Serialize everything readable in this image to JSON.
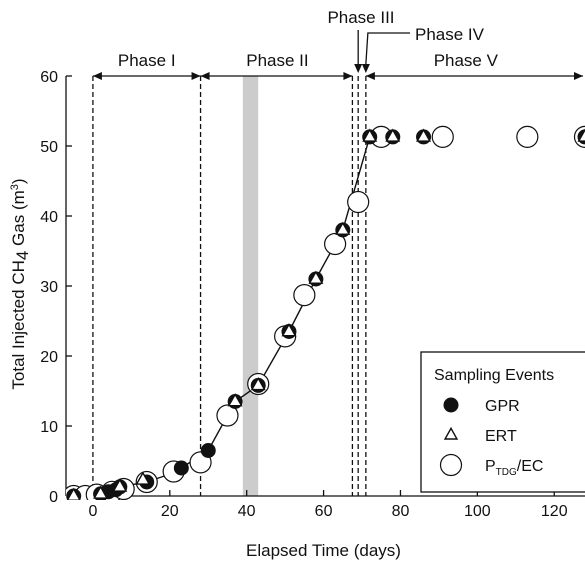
{
  "chart_data": {
    "type": "scatter",
    "xlabel": "Elapsed Time (days)",
    "ylabel": {
      "main": "Total Injected CH",
      "sub": "4",
      "rest": " Gas (m",
      "sup": "3",
      "end": ")"
    },
    "xlim": [
      -7,
      128
    ],
    "ylim": [
      0,
      60
    ],
    "xticks": [
      0,
      20,
      40,
      60,
      80,
      100,
      120
    ],
    "yticks": [
      0,
      10,
      20,
      30,
      40,
      50,
      60
    ],
    "phase_boundaries": [
      0,
      28,
      67.5,
      69,
      71
    ],
    "phases": [
      {
        "label": "Phase I",
        "from": 0,
        "to": 28,
        "label_x": 14
      },
      {
        "label": "Phase II",
        "from": 28,
        "to": 67.5,
        "label_x": 48
      },
      {
        "label": "Phase V",
        "from": 71,
        "to": 128,
        "label_x": 97
      }
    ],
    "callouts": [
      {
        "label": "Phase III",
        "target_x": 69
      },
      {
        "label": "Phase IV",
        "target_x": 71
      }
    ],
    "shaded_band": {
      "from": 39,
      "to": 43
    },
    "line": {
      "x": [
        -5,
        2,
        4,
        6,
        7,
        14,
        21,
        23,
        30,
        37,
        43,
        51,
        58,
        65,
        72
      ],
      "y": [
        0,
        0.3,
        0.6,
        0.9,
        1.3,
        2,
        3.3,
        4,
        6.5,
        13.5,
        15.8,
        23.5,
        31,
        38,
        51.3
      ]
    },
    "series": [
      {
        "name": "GPR",
        "marker": "filled-circle",
        "x": [
          -5,
          2,
          4,
          6,
          7,
          14,
          23,
          30,
          37,
          43,
          51,
          58,
          65,
          72,
          78,
          86,
          128
        ],
        "y": [
          0,
          0.3,
          0.6,
          0.9,
          1.3,
          2,
          4,
          6.5,
          13.5,
          15.8,
          23.5,
          31,
          38,
          51.3,
          51.3,
          51.3,
          51.3
        ]
      },
      {
        "name": "ERT",
        "marker": "open-triangle",
        "x": [
          -5,
          2,
          7,
          13,
          37,
          43,
          51,
          58,
          65,
          72,
          78,
          86,
          128
        ],
        "y": [
          0,
          0.3,
          1.3,
          2.3,
          13.5,
          15.8,
          23.5,
          31,
          38,
          51.3,
          51.3,
          51.3,
          51.3
        ]
      },
      {
        "name": "P_TDG/EC",
        "marker": "open-circle",
        "x": [
          -5,
          -2,
          1,
          5,
          8,
          14,
          21,
          28,
          35,
          43,
          50,
          55,
          63,
          69,
          75,
          91,
          113,
          128
        ],
        "y": [
          0,
          0,
          0.2,
          0.6,
          1,
          2,
          3.5,
          4.8,
          11.5,
          16,
          22.8,
          28.7,
          36,
          42,
          51.3,
          51.3,
          51.3,
          51.3
        ]
      }
    ],
    "legend": {
      "title": "Sampling Events",
      "position": "bottom-right",
      "entries": [
        {
          "label": "GPR",
          "marker": "filled-circle"
        },
        {
          "label": "ERT",
          "marker": "open-triangle"
        },
        {
          "label": "P",
          "sub": "TDG",
          "rest": "/EC",
          "marker": "open-circle"
        }
      ]
    },
    "colors": {
      "ink": "#111111",
      "band": "#cccccc"
    }
  }
}
